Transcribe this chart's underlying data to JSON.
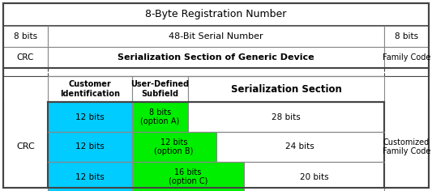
{
  "title": "8-Byte Registration Number",
  "row1_left": "8 bits",
  "row1_center": "48-Bit Serial Number",
  "row1_right": "8 bits",
  "row2_left": "CRC",
  "row2_center": "Serialization Section of Generic Device",
  "row2_right": "Family Code",
  "header_cust": "Customer\nIdentification",
  "header_user": "User-Defined\nSubfield",
  "header_ser": "Serialization Section",
  "opt_rows": [
    {
      "cust": "12 bits",
      "user": "8 bits\n(option A)",
      "ser": "28 bits",
      "user_bits": 8,
      "ser_bits": 28
    },
    {
      "cust": "12 bits",
      "user": "12 bits\n(option B)",
      "ser": "24 bits",
      "user_bits": 12,
      "ser_bits": 24
    },
    {
      "cust": "12 bits",
      "user": "16 bits\n(option C)",
      "ser": "20 bits",
      "user_bits": 16,
      "ser_bits": 20
    }
  ],
  "left_label": "CRC",
  "right_label": "Customized\nFamily Code",
  "cyan_color": "#00CCFF",
  "green_color": "#00EE00",
  "white_color": "#FFFFFF",
  "border_color": "#888888",
  "dark_border": "#444444",
  "bg_color": "#FFFFFF",
  "fig_w": 5.33,
  "fig_h": 2.36,
  "dpi": 100
}
